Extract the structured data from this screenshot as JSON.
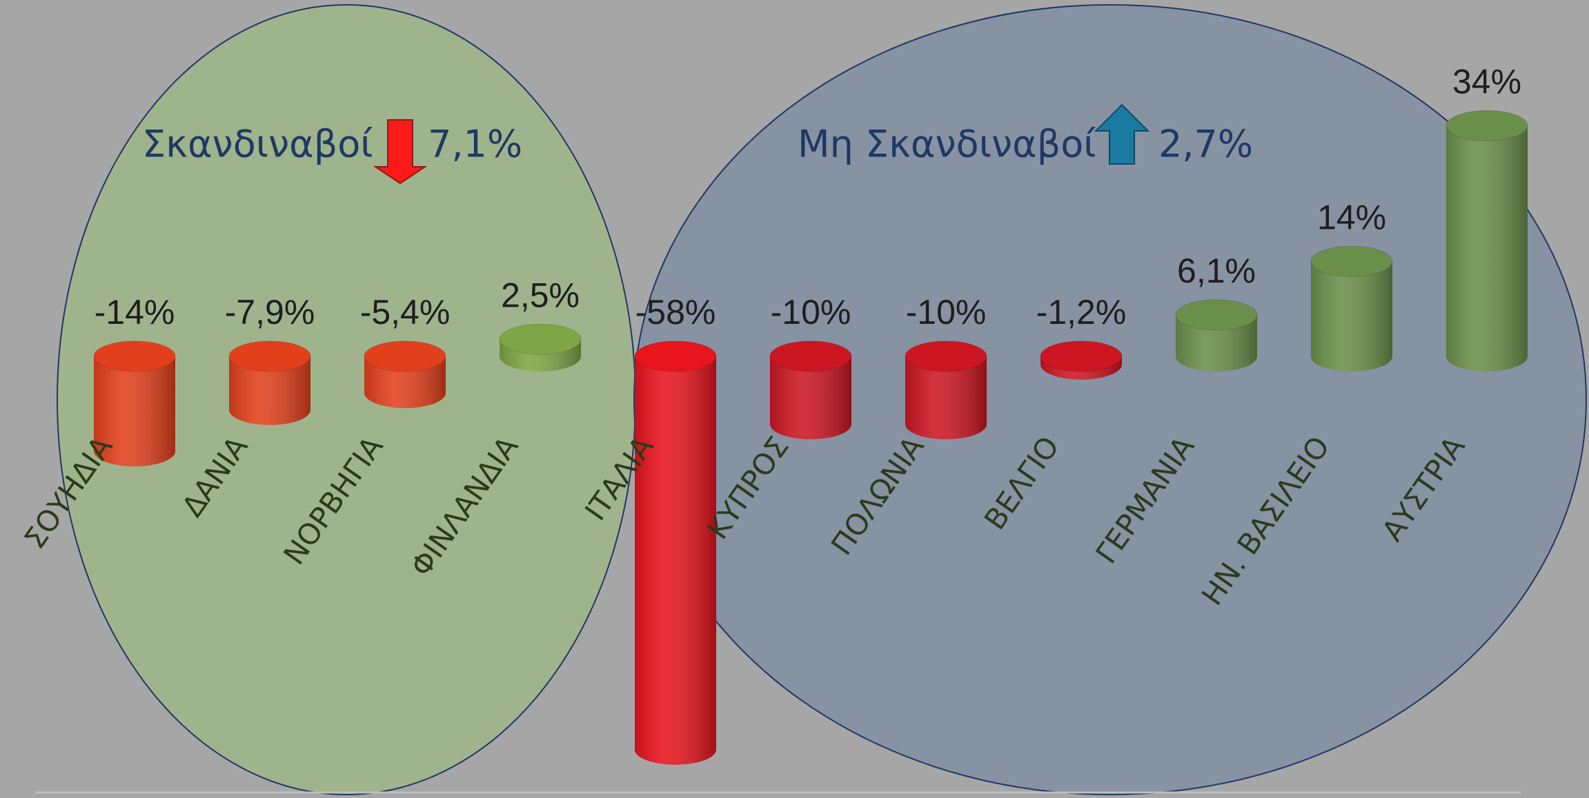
{
  "chart_data": {
    "type": "cylinder_bar",
    "categories": [
      "ΣΟΥΗΔΙΑ",
      "ΔΑΝΙΑ",
      "ΝΟΡΒΗΓΙΑ",
      "ΦΙΝΛΑΝΔΙΑ",
      "ΙΤΑΛΙΑ",
      "ΚΥΠΡΟΣ",
      "ΠΟΛΩΝΙΑ",
      "ΒΕΛΓΙΟ",
      "ΓΕΡΜΑΝΙΑ",
      "ΗΝ. ΒΑΣΙΛΕΙΟ",
      "ΑΥΣΤΡΙΑ"
    ],
    "values": [
      -14,
      -7.9,
      -5.4,
      2.5,
      -58,
      -10,
      -10,
      -1.2,
      6.1,
      14,
      34
    ],
    "value_labels": [
      "-14%",
      "-7,9%",
      "-5,4%",
      "2,5%",
      "-58%",
      "-10%",
      "-10%",
      "-1,2%",
      "6,1%",
      "14%",
      "34%"
    ],
    "colors": [
      "#e2401c",
      "#e2401c",
      "#e2401c",
      "#7ea646",
      "#e8141e",
      "#cc1622",
      "#cc1622",
      "#cc1622",
      "#6a8f4a",
      "#6a8f4a",
      "#6a8f4a"
    ],
    "annotations": [
      {
        "text": "Σκανδιναβοί",
        "value_label": "7,1%",
        "direction": "down"
      },
      {
        "text": "Μη Σκανδιναβοί",
        "value_label": "2,7%",
        "direction": "up"
      }
    ]
  }
}
